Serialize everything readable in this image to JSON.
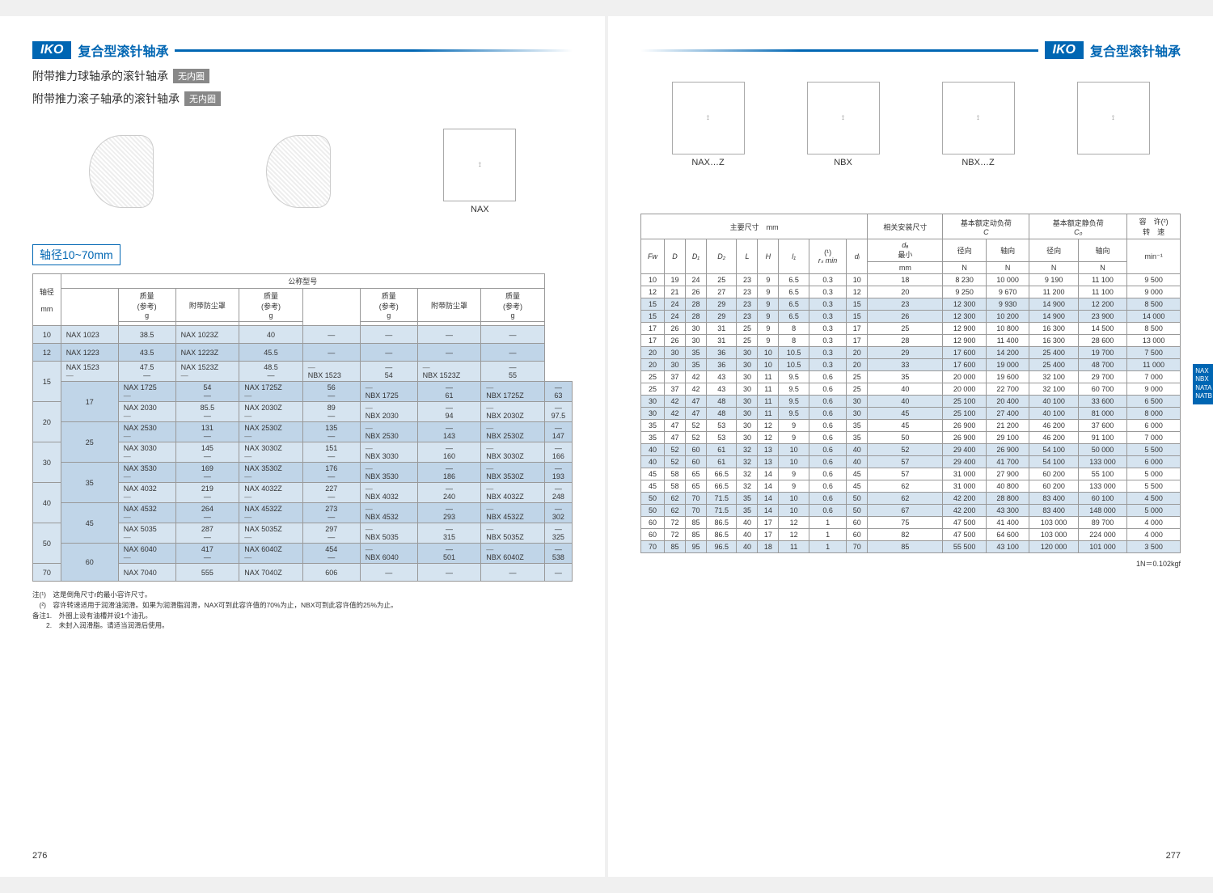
{
  "brand": "IKO",
  "header_title": "复合型滚针轴承",
  "subtitle1_a": "附带推力球轴承的滚针轴承",
  "subtitle1_b": "无内圈",
  "subtitle2_a": "附带推力滚子轴承的滚针轴承",
  "subtitle2_b": "无内圈",
  "diagram_labels": {
    "nax": "NAX",
    "naxz": "NAX…Z",
    "nbx": "NBX",
    "nbxz": "NBX…Z"
  },
  "range_label": "轴径10~70mm",
  "left_table": {
    "group_header": "公称型号",
    "col_headers": {
      "dia": "轴径",
      "dia_unit": "mm",
      "mass": "质量",
      "mass_ref": "(参考)",
      "mass_unit": "g",
      "dust": "附带防尘罩"
    },
    "rows": [
      {
        "d": "10",
        "a": "NAX 1023",
        "ag": "38.5",
        "b": "NAX 1023Z",
        "bg": "40",
        "c": "—",
        "cg": "—",
        "e": "—",
        "eg": "—"
      },
      {
        "d": "12",
        "a": "NAX 1223",
        "ag": "43.5",
        "b": "NAX 1223Z",
        "bg": "45.5",
        "c": "—",
        "cg": "—",
        "e": "—",
        "eg": "—"
      },
      {
        "d": "15",
        "a": "NAX 1523",
        "ag": "47.5",
        "b": "NAX 1523Z",
        "bg": "48.5",
        "c": "NBX 1523",
        "cg": "54",
        "e": "NBX 1523Z",
        "eg": "55",
        "two": true
      },
      {
        "d": "17",
        "a": "NAX 1725",
        "ag": "54",
        "b": "NAX 1725Z",
        "bg": "56",
        "c": "NBX 1725",
        "cg": "61",
        "e": "NBX 1725Z",
        "eg": "63",
        "two": true
      },
      {
        "d": "20",
        "a": "NAX 2030",
        "ag": "85.5",
        "b": "NAX 2030Z",
        "bg": "89",
        "c": "NBX 2030",
        "cg": "94",
        "e": "NBX 2030Z",
        "eg": "97.5",
        "two": true
      },
      {
        "d": "25",
        "a": "NAX 2530",
        "ag": "131",
        "b": "NAX 2530Z",
        "bg": "135",
        "c": "NBX 2530",
        "cg": "143",
        "e": "NBX 2530Z",
        "eg": "147",
        "two": true
      },
      {
        "d": "30",
        "a": "NAX 3030",
        "ag": "145",
        "b": "NAX 3030Z",
        "bg": "151",
        "c": "NBX 3030",
        "cg": "160",
        "e": "NBX 3030Z",
        "eg": "166",
        "two": true
      },
      {
        "d": "35",
        "a": "NAX 3530",
        "ag": "169",
        "b": "NAX 3530Z",
        "bg": "176",
        "c": "NBX 3530",
        "cg": "186",
        "e": "NBX 3530Z",
        "eg": "193",
        "two": true
      },
      {
        "d": "40",
        "a": "NAX 4032",
        "ag": "219",
        "b": "NAX 4032Z",
        "bg": "227",
        "c": "NBX 4032",
        "cg": "240",
        "e": "NBX 4032Z",
        "eg": "248",
        "two": true
      },
      {
        "d": "45",
        "a": "NAX 4532",
        "ag": "264",
        "b": "NAX 4532Z",
        "bg": "273",
        "c": "NBX 4532",
        "cg": "293",
        "e": "NBX 4532Z",
        "eg": "302",
        "two": true
      },
      {
        "d": "50",
        "a": "NAX 5035",
        "ag": "287",
        "b": "NAX 5035Z",
        "bg": "297",
        "c": "NBX 5035",
        "cg": "315",
        "e": "NBX 5035Z",
        "eg": "325",
        "two": true
      },
      {
        "d": "60",
        "a": "NAX 6040",
        "ag": "417",
        "b": "NAX 6040Z",
        "bg": "454",
        "c": "NBX 6040",
        "cg": "501",
        "e": "NBX 6040Z",
        "eg": "538",
        "two": true
      },
      {
        "d": "70",
        "a": "NAX 7040",
        "ag": "555",
        "b": "NAX 7040Z",
        "bg": "606",
        "c": "—",
        "cg": "—",
        "e": "—",
        "eg": "—"
      }
    ]
  },
  "notes": {
    "n1_label": "注(¹)",
    "n1": "这是倒角尺寸r的最小容许尺寸。",
    "n2_label": "(²)",
    "n2": "容许转速适用于润滑油润滑。如果为润滑脂润滑，NAX可到此容许值的70%为止，NBX可到此容许值的25%为止。",
    "b1_label": "备注1.",
    "b1": "外圈上设有油槽并设1个油孔。",
    "b2_label": "2.",
    "b2": "未封入润滑脂。请适当润滑后使用。"
  },
  "right_table": {
    "group_headers": {
      "main": "主要尺寸",
      "main_unit": "mm",
      "mount": "相关安装尺寸",
      "dyn": "基本额定动负荷",
      "dyn_sym": "C",
      "stat": "基本额定静负荷",
      "stat_sym": "C₀",
      "speed": "容　许(²)",
      "speed2": "转　速"
    },
    "cols": {
      "fw": "Fw",
      "d": "D",
      "d1": "D₁",
      "d2": "D₂",
      "l": "L",
      "h": "H",
      "l1": "l₁",
      "rs": "(¹)",
      "rs2": "rₛ min",
      "di": "dᵢ",
      "da": "dₐ",
      "da2": "最小",
      "unit_mm": "mm",
      "rad": "径向",
      "ax": "轴向",
      "n": "N",
      "min1": "min⁻¹"
    },
    "rows": [
      [
        "10",
        "19",
        "24",
        "25",
        "23",
        "9",
        "6.5",
        "0.3",
        "10",
        "18",
        "8 230",
        "10 000",
        "9 190",
        "11 100",
        "9 500"
      ],
      [
        "12",
        "21",
        "26",
        "27",
        "23",
        "9",
        "6.5",
        "0.3",
        "12",
        "20",
        "9 250",
        "9 670",
        "11 200",
        "11 100",
        "9 000"
      ],
      [
        "15",
        "24",
        "28",
        "29",
        "23",
        "9",
        "6.5",
        "0.3",
        "15",
        "23",
        "12 300",
        "9 930",
        "14 900",
        "12 200",
        "8 500"
      ],
      [
        "15",
        "24",
        "28",
        "29",
        "23",
        "9",
        "6.5",
        "0.3",
        "15",
        "26",
        "12 300",
        "10 200",
        "14 900",
        "23 900",
        "14 000"
      ],
      [
        "17",
        "26",
        "30",
        "31",
        "25",
        "9",
        "8",
        "0.3",
        "17",
        "25",
        "12 900",
        "10 800",
        "16 300",
        "14 500",
        "8 500"
      ],
      [
        "17",
        "26",
        "30",
        "31",
        "25",
        "9",
        "8",
        "0.3",
        "17",
        "28",
        "12 900",
        "11 400",
        "16 300",
        "28 600",
        "13 000"
      ],
      [
        "20",
        "30",
        "35",
        "36",
        "30",
        "10",
        "10.5",
        "0.3",
        "20",
        "29",
        "17 600",
        "14 200",
        "25 400",
        "19 700",
        "7 500"
      ],
      [
        "20",
        "30",
        "35",
        "36",
        "30",
        "10",
        "10.5",
        "0.3",
        "20",
        "33",
        "17 600",
        "19 000",
        "25 400",
        "48 700",
        "11 000"
      ],
      [
        "25",
        "37",
        "42",
        "43",
        "30",
        "11",
        "9.5",
        "0.6",
        "25",
        "35",
        "20 000",
        "19 600",
        "32 100",
        "29 700",
        "7 000"
      ],
      [
        "25",
        "37",
        "42",
        "43",
        "30",
        "11",
        "9.5",
        "0.6",
        "25",
        "40",
        "20 000",
        "22 700",
        "32 100",
        "60 700",
        "9 000"
      ],
      [
        "30",
        "42",
        "47",
        "48",
        "30",
        "11",
        "9.5",
        "0.6",
        "30",
        "40",
        "25 100",
        "20 400",
        "40 100",
        "33 600",
        "6 500"
      ],
      [
        "30",
        "42",
        "47",
        "48",
        "30",
        "11",
        "9.5",
        "0.6",
        "30",
        "45",
        "25 100",
        "27 400",
        "40 100",
        "81 000",
        "8 000"
      ],
      [
        "35",
        "47",
        "52",
        "53",
        "30",
        "12",
        "9",
        "0.6",
        "35",
        "45",
        "26 900",
        "21 200",
        "46 200",
        "37 600",
        "6 000"
      ],
      [
        "35",
        "47",
        "52",
        "53",
        "30",
        "12",
        "9",
        "0.6",
        "35",
        "50",
        "26 900",
        "29 100",
        "46 200",
        "91 100",
        "7 000"
      ],
      [
        "40",
        "52",
        "60",
        "61",
        "32",
        "13",
        "10",
        "0.6",
        "40",
        "52",
        "29 400",
        "26 900",
        "54 100",
        "50 000",
        "5 500"
      ],
      [
        "40",
        "52",
        "60",
        "61",
        "32",
        "13",
        "10",
        "0.6",
        "40",
        "57",
        "29 400",
        "41 700",
        "54 100",
        "133 000",
        "6 000"
      ],
      [
        "45",
        "58",
        "65",
        "66.5",
        "32",
        "14",
        "9",
        "0.6",
        "45",
        "57",
        "31 000",
        "27 900",
        "60 200",
        "55 100",
        "5 000"
      ],
      [
        "45",
        "58",
        "65",
        "66.5",
        "32",
        "14",
        "9",
        "0.6",
        "45",
        "62",
        "31 000",
        "40 800",
        "60 200",
        "133 000",
        "5 500"
      ],
      [
        "50",
        "62",
        "70",
        "71.5",
        "35",
        "14",
        "10",
        "0.6",
        "50",
        "62",
        "42 200",
        "28 800",
        "83 400",
        "60 100",
        "4 500"
      ],
      [
        "50",
        "62",
        "70",
        "71.5",
        "35",
        "14",
        "10",
        "0.6",
        "50",
        "67",
        "42 200",
        "43 300",
        "83 400",
        "148 000",
        "5 000"
      ],
      [
        "60",
        "72",
        "85",
        "86.5",
        "40",
        "17",
        "12",
        "1",
        "60",
        "75",
        "47 500",
        "41 400",
        "103 000",
        "89 700",
        "4 000"
      ],
      [
        "60",
        "72",
        "85",
        "86.5",
        "40",
        "17",
        "12",
        "1",
        "60",
        "82",
        "47 500",
        "64 600",
        "103 000",
        "224 000",
        "4 000"
      ],
      [
        "70",
        "85",
        "95",
        "96.5",
        "40",
        "18",
        "11",
        "1",
        "70",
        "85",
        "55 500",
        "43 100",
        "120 000",
        "101 000",
        "3 500"
      ]
    ],
    "row_bands": [
      0,
      0,
      1,
      1,
      0,
      0,
      1,
      1,
      0,
      0,
      1,
      1,
      0,
      0,
      1,
      1,
      0,
      0,
      1,
      1,
      0,
      0,
      1
    ]
  },
  "conversion": "1N＝0.102kgf",
  "side_tab": [
    "NAX",
    "NBX",
    "NATA",
    "NATB"
  ],
  "page_left": "276",
  "page_right": "277"
}
